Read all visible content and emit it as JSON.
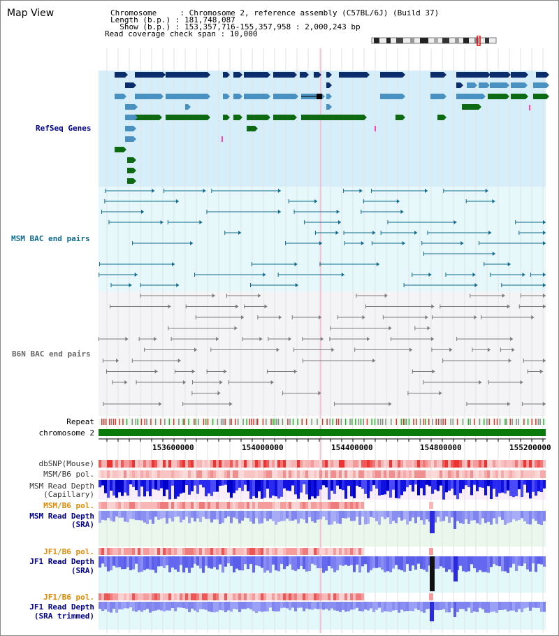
{
  "map_title": "Map View",
  "header": {
    "chromosome_line": "Chromosome     : Chromosome 2, reference assembly (C57BL/6J) (Build 37)",
    "length_line": "Length (b.p.) : 181,748,087",
    "show_line": "  Show (b.p.) : 153,357,716-155,357,958 : 2,000,243 bp",
    "coverage_line": "Read coverage check span : 10,000"
  },
  "tracks": {
    "refseq": "RefSeq Genes",
    "msm_bac": "MSM BAC end pairs",
    "b6n_bac": "B6N BAC end pairs",
    "repeat": "Repeat",
    "chromosome": "chromosome 2",
    "dbsnp": "dbSNP(Mouse)",
    "msm_b6_pol": "MSM/B6 pol.",
    "msm_read_depth_cap_1": "MSM Read Depth",
    "msm_read_depth_cap_2": "(Capillary)",
    "msm_b6_pol_sra": "MSM/B6 pol.",
    "msm_read_depth_sra_1": "MSM Read Depth",
    "msm_read_depth_sra_2": "(SRA)",
    "jf1_b6_pol": "JF1/B6 pol.",
    "jf1_read_depth_1": "JF1 Read Depth",
    "jf1_read_depth_2": "(SRA)",
    "jf1_b6_pol_2": "JF1/B6 pol.",
    "jf1_read_depth_trim_1": "JF1 Read Depth",
    "jf1_read_depth_trim_2": "(SRA trimmed)"
  },
  "axis_ticks": [
    "153600000",
    "154000000",
    "154400000",
    "154800000",
    "155200000"
  ],
  "colors": {
    "refseq_dark": "#0b2d6b",
    "refseq_light": "#4a90c0",
    "refseq_green": "#0e6a12",
    "msm": "#0e6b8e",
    "b6n": "#7a7a7a",
    "label_blue": "#00008b",
    "label_orange": "#e08a00"
  }
}
